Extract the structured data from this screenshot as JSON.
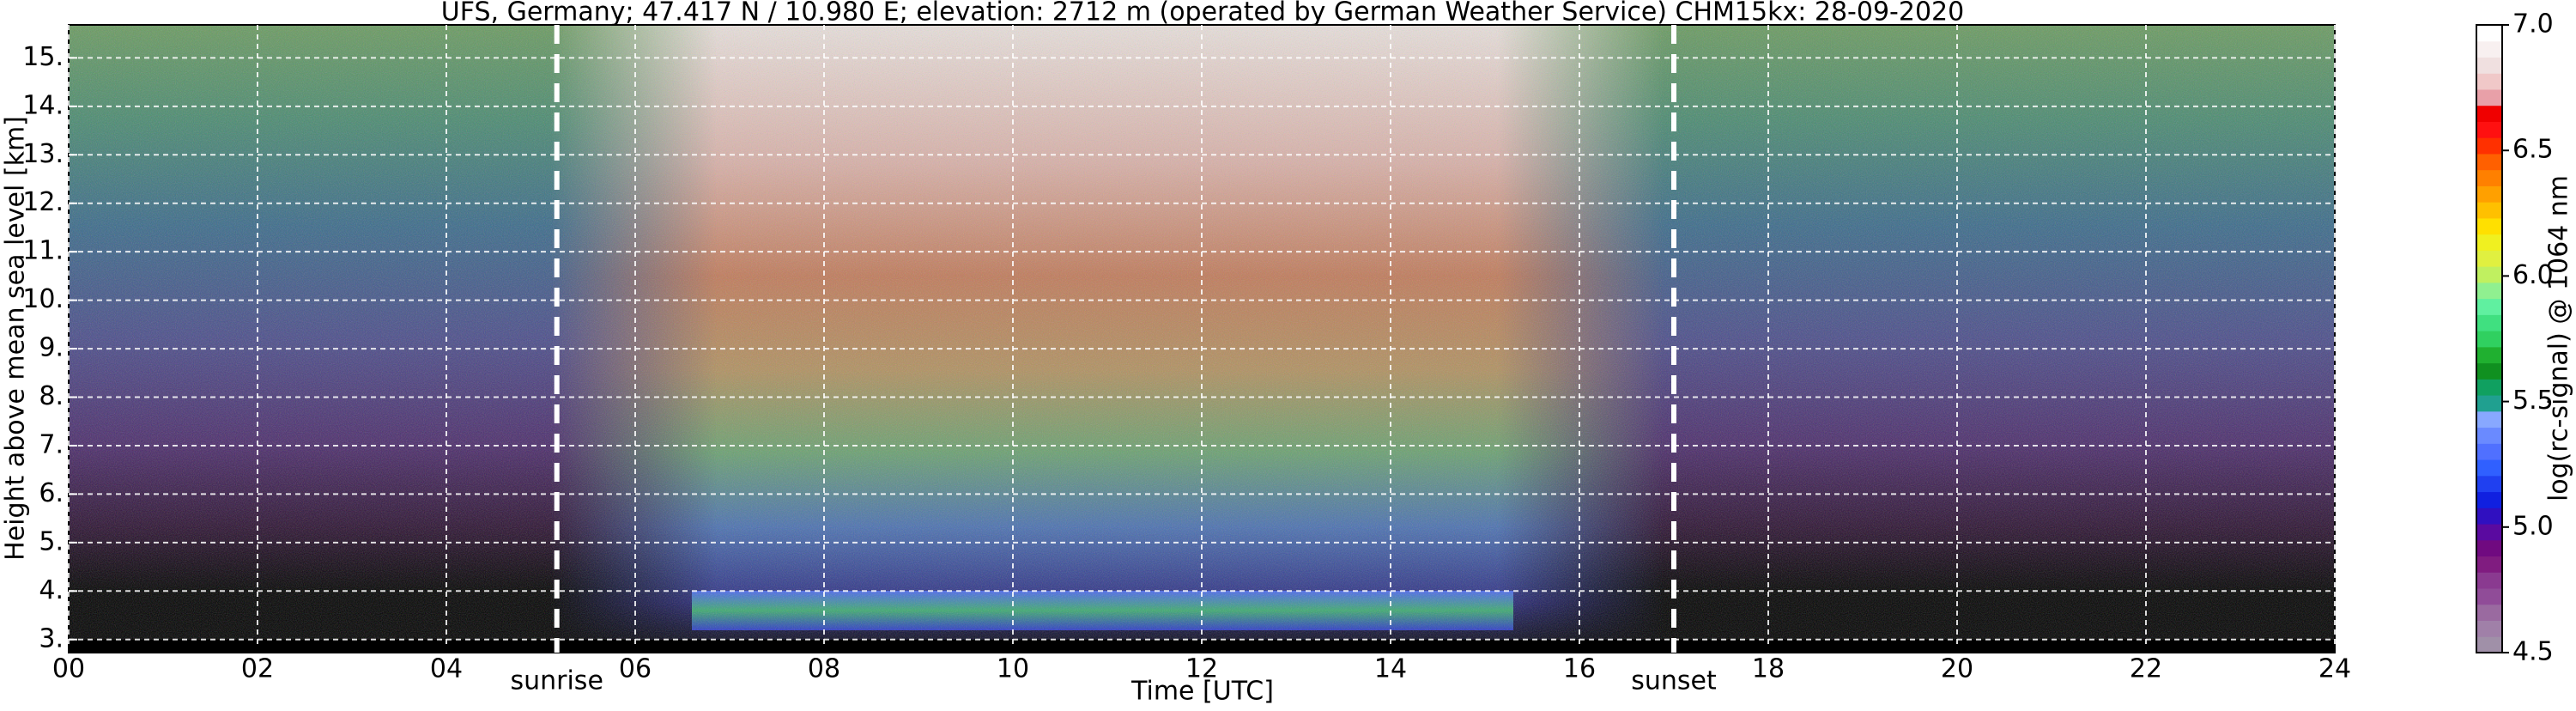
{
  "chart_data": {
    "type": "heatmap",
    "title": "UFS, Germany; 47.417 N / 10.980 E; elevation: 2712 m  (operated by German Weather Service)    CHM15kx: 28-09-2020",
    "xlabel": "Time [UTC]",
    "ylabel": "Height above mean sea level [km]",
    "xlim": [
      0,
      24
    ],
    "ylim": [
      2.73,
      15.68
    ],
    "xticks": [
      {
        "value": 0,
        "label": "00"
      },
      {
        "value": 2,
        "label": "02"
      },
      {
        "value": 4,
        "label": "04"
      },
      {
        "value": 6,
        "label": "06"
      },
      {
        "value": 8,
        "label": "08"
      },
      {
        "value": 10,
        "label": "10"
      },
      {
        "value": 12,
        "label": "12"
      },
      {
        "value": 14,
        "label": "14"
      },
      {
        "value": 16,
        "label": "16"
      },
      {
        "value": 18,
        "label": "18"
      },
      {
        "value": 20,
        "label": "20"
      },
      {
        "value": 22,
        "label": "22"
      },
      {
        "value": 24,
        "label": "24"
      }
    ],
    "yticks": [
      {
        "value": 3,
        "label": "3."
      },
      {
        "value": 4,
        "label": "4."
      },
      {
        "value": 5,
        "label": "5."
      },
      {
        "value": 6,
        "label": "6."
      },
      {
        "value": 7,
        "label": "7."
      },
      {
        "value": 8,
        "label": "8."
      },
      {
        "value": 9,
        "label": "9."
      },
      {
        "value": 10,
        "label": "10."
      },
      {
        "value": 11,
        "label": "11."
      },
      {
        "value": 12,
        "label": "12."
      },
      {
        "value": 13,
        "label": "13."
      },
      {
        "value": 14,
        "label": "14."
      },
      {
        "value": 15,
        "label": "15."
      }
    ],
    "grid": true,
    "annotations": [
      {
        "text": "sunrise",
        "x": 5.17
      },
      {
        "text": "sunset",
        "x": 17.0
      }
    ],
    "colorbar": {
      "label": "log(rc-signal) @ 1064 nm",
      "lim": [
        4.5,
        7.0
      ],
      "ticks": [
        4.5,
        {
          "value": 5,
          "label": "5.0"
        },
        5.5,
        {
          "value": 6,
          "label": "6.0"
        },
        6.5,
        {
          "value": 7,
          "label": "7.0"
        }
      ],
      "colors": [
        "#a090a8",
        "#a080a8",
        "#9a6aa0",
        "#904c98",
        "#8a3a90",
        "#801c80",
        "#700a80",
        "#5a0aa0",
        "#3010c0",
        "#1020e0",
        "#2040f0",
        "#3060ff",
        "#5070ff",
        "#6a8aff",
        "#88a8ff",
        "#20a090",
        "#10a060",
        "#109020",
        "#20b030",
        "#30d060",
        "#40e080",
        "#60f0a0",
        "#90f090",
        "#c0f060",
        "#e0f040",
        "#f0f020",
        "#ffe000",
        "#ffc000",
        "#ffa000",
        "#ff8000",
        "#ff6000",
        "#ff3000",
        "#ff1010",
        "#f00000",
        "#e8a0a8",
        "#f0c8c8",
        "#f0e0e0",
        "#f8f0f0",
        "#ffffff"
      ]
    }
  }
}
